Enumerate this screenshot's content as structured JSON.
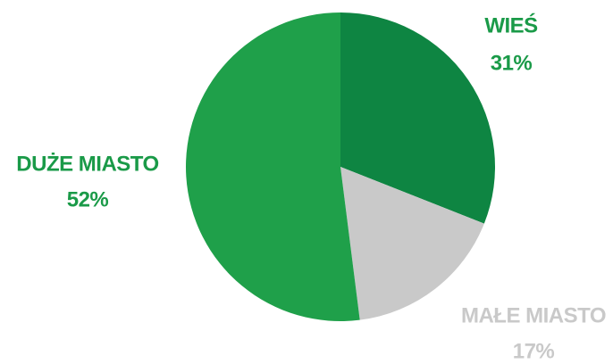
{
  "chart_data": {
    "type": "pie",
    "categories": [
      "WIEŚ",
      "MAŁE MIASTO",
      "DUŻE MIASTO"
    ],
    "values": [
      31,
      17,
      52
    ],
    "value_labels": [
      "31%",
      "17%",
      "52%"
    ],
    "colors": [
      "#0e8542",
      "#c9c9c9",
      "#1fa04a"
    ],
    "label_colors": [
      "#1a9a48",
      "#c9c9c9",
      "#1a9a48"
    ]
  }
}
